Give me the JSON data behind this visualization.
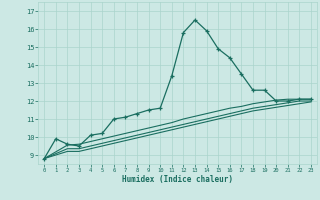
{
  "xlabel": "Humidex (Indice chaleur)",
  "bg_color": "#cce8e4",
  "grid_color": "#aad4cc",
  "line_color": "#1a6e60",
  "xlim": [
    -0.5,
    23.5
  ],
  "ylim": [
    8.5,
    17.5
  ],
  "xticks": [
    0,
    1,
    2,
    3,
    4,
    5,
    6,
    7,
    8,
    9,
    10,
    11,
    12,
    13,
    14,
    15,
    16,
    17,
    18,
    19,
    20,
    21,
    22,
    23
  ],
  "yticks": [
    9,
    10,
    11,
    12,
    13,
    14,
    15,
    16,
    17
  ],
  "curve1_x": [
    0,
    1,
    2,
    3,
    4,
    5,
    6,
    7,
    8,
    9,
    10,
    11,
    12,
    13,
    14,
    15,
    16,
    17,
    18,
    19,
    20,
    21,
    22,
    23
  ],
  "curve1_y": [
    8.8,
    9.9,
    9.6,
    9.5,
    10.1,
    10.2,
    11.0,
    11.1,
    11.3,
    11.5,
    11.6,
    13.4,
    15.8,
    16.5,
    15.9,
    14.9,
    14.4,
    13.5,
    12.6,
    12.6,
    12.0,
    12.0,
    12.1,
    12.1
  ],
  "curve2_x": [
    0,
    2,
    3,
    4,
    5,
    6,
    7,
    8,
    9,
    10,
    11,
    12,
    13,
    14,
    15,
    16,
    17,
    18,
    19,
    20,
    21,
    22,
    23
  ],
  "curve2_y": [
    8.8,
    9.55,
    9.6,
    9.75,
    9.9,
    10.05,
    10.2,
    10.35,
    10.5,
    10.65,
    10.8,
    11.0,
    11.15,
    11.3,
    11.45,
    11.6,
    11.7,
    11.85,
    11.95,
    12.05,
    12.1,
    12.1,
    12.1
  ],
  "curve3_x": [
    0,
    2,
    3,
    4,
    5,
    6,
    7,
    8,
    9,
    10,
    11,
    12,
    13,
    14,
    15,
    16,
    17,
    18,
    19,
    20,
    21,
    22,
    23
  ],
  "curve3_y": [
    8.8,
    9.35,
    9.35,
    9.5,
    9.65,
    9.8,
    9.95,
    10.1,
    10.25,
    10.4,
    10.55,
    10.7,
    10.85,
    11.0,
    11.15,
    11.3,
    11.45,
    11.6,
    11.7,
    11.8,
    11.9,
    12.0,
    12.0
  ],
  "curve4_x": [
    0,
    2,
    3,
    4,
    5,
    6,
    7,
    8,
    9,
    10,
    11,
    12,
    13,
    14,
    15,
    16,
    17,
    18,
    19,
    20,
    21,
    22,
    23
  ],
  "curve4_y": [
    8.8,
    9.2,
    9.2,
    9.35,
    9.5,
    9.65,
    9.8,
    9.95,
    10.1,
    10.25,
    10.4,
    10.55,
    10.7,
    10.85,
    11.0,
    11.15,
    11.3,
    11.45,
    11.55,
    11.65,
    11.75,
    11.85,
    11.95
  ]
}
